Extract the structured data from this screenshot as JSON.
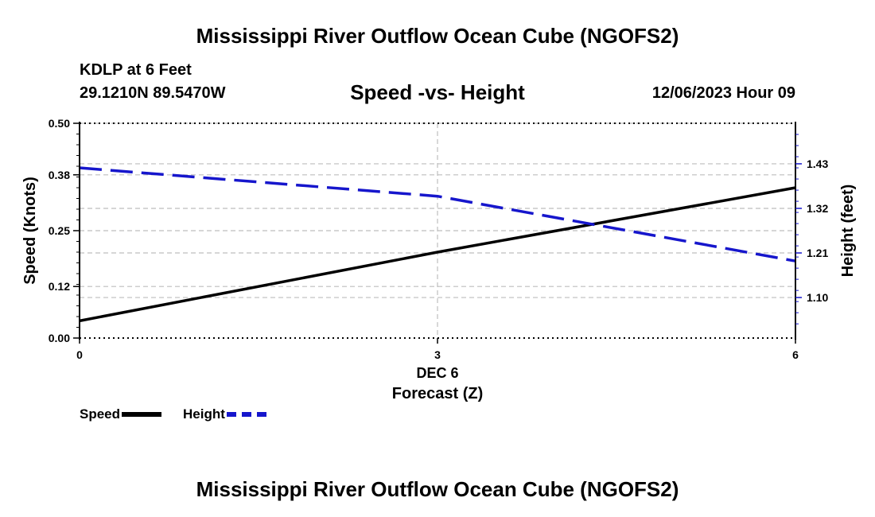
{
  "main_title": "Mississippi River Outflow Ocean Cube (NGOFS2)",
  "footer_title": "Mississippi River Outflow Ocean Cube (NGOFS2)",
  "station": {
    "name": "KDLP at 6 Feet",
    "coords": "29.1210N  89.5470W",
    "date": "12/06/2023 Hour 09"
  },
  "chart_data": {
    "type": "line",
    "title": "Speed -vs- Height",
    "xlabel": "Forecast (Z)",
    "x_date_label": "DEC 6",
    "ylabel_left": "Speed (Knots)",
    "ylabel_right": "Height (feet)",
    "x_ticks": [
      0,
      3,
      6
    ],
    "x_tick_labels": [
      "0",
      "3",
      "6"
    ],
    "xlim": [
      0,
      6
    ],
    "ylim_left": [
      0,
      0.5
    ],
    "y_left_ticks": [
      0.0,
      0.12,
      0.25,
      0.38,
      0.5
    ],
    "y_left_tick_labels": [
      "0.00",
      "0.12",
      "0.25",
      "0.38",
      "0.50"
    ],
    "ylim_right": [
      1.0,
      1.53
    ],
    "y_right_ticks": [
      1.1,
      1.21,
      1.32,
      1.43
    ],
    "y_right_tick_labels": [
      "1.10",
      "1.21",
      "1.32",
      "1.43"
    ],
    "grid": true,
    "legend_position": "bottom-left",
    "series": [
      {
        "name": "Speed",
        "axis": "left",
        "style": "solid",
        "color": "#000000",
        "x": [
          0,
          3,
          6
        ],
        "values": [
          0.04,
          0.2,
          0.35
        ]
      },
      {
        "name": "Height",
        "axis": "right",
        "style": "dashed",
        "color": "#1616cc",
        "x": [
          0,
          3,
          6
        ],
        "values": [
          1.42,
          1.35,
          1.19
        ]
      }
    ]
  }
}
